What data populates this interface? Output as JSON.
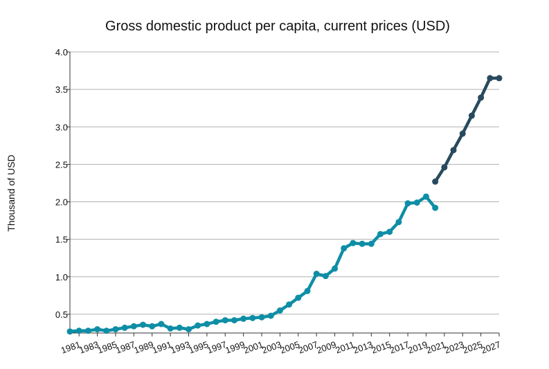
{
  "chart_data": {
    "type": "line",
    "title": "Gross domestic product per capita, current prices (USD)",
    "xlabel": "",
    "ylabel": "Thousand of USD",
    "xlim": [
      1980,
      2027
    ],
    "ylim": [
      0.25,
      4.0
    ],
    "yticks": [
      0.5,
      1.0,
      1.5,
      2.0,
      2.5,
      3.0,
      3.5,
      4.0
    ],
    "ytick_labels": [
      "0.5",
      "1.0",
      "1.5",
      "2.0",
      "2.5",
      "3.0",
      "3.5",
      "4.0"
    ],
    "xticks": [
      1981,
      1983,
      1985,
      1987,
      1989,
      1991,
      1993,
      1995,
      1997,
      1999,
      2001,
      2003,
      2005,
      2007,
      2009,
      2011,
      2013,
      2015,
      2017,
      2019,
      2021,
      2023,
      2025,
      2027
    ],
    "xtick_labels": [
      "1981",
      "1983",
      "1985",
      "1987",
      "1989",
      "1991",
      "1993",
      "1995",
      "1997",
      "1999",
      "2001",
      "2003",
      "2005",
      "2007",
      "2009",
      "2011",
      "2013",
      "2015",
      "2017",
      "2019",
      "2021",
      "2023",
      "2025",
      "2027"
    ],
    "grid": true,
    "series": [
      {
        "name": "",
        "color": "#0e8ea6",
        "x": [
          1980,
          1981,
          1982,
          1983,
          1984,
          1985,
          1986,
          1987,
          1988,
          1989,
          1990,
          1991,
          1992,
          1993,
          1994,
          1995,
          1996,
          1997,
          1998,
          1999,
          2000,
          2001,
          2002,
          2003,
          2004,
          2005,
          2006,
          2007,
          2008,
          2009,
          2010,
          2011,
          2012,
          2013,
          2014,
          2015,
          2016,
          2017,
          2018,
          2019,
          2020
        ],
        "y": [
          0.27,
          0.28,
          0.28,
          0.3,
          0.28,
          0.3,
          0.32,
          0.34,
          0.36,
          0.34,
          0.37,
          0.31,
          0.32,
          0.3,
          0.35,
          0.37,
          0.4,
          0.42,
          0.42,
          0.44,
          0.45,
          0.46,
          0.48,
          0.55,
          0.63,
          0.72,
          0.81,
          1.04,
          1.01,
          1.11,
          1.38,
          1.45,
          1.44,
          1.44,
          1.57,
          1.6,
          1.73,
          1.98,
          1.99,
          2.07,
          1.92
        ]
      },
      {
        "name": "",
        "color": "#294a5e",
        "x": [
          2020,
          2021,
          2022,
          2023,
          2024,
          2025,
          2026,
          2027
        ],
        "y": [
          2.27,
          2.46,
          2.69,
          2.91,
          3.15,
          3.39,
          3.65,
          3.65
        ]
      }
    ]
  }
}
